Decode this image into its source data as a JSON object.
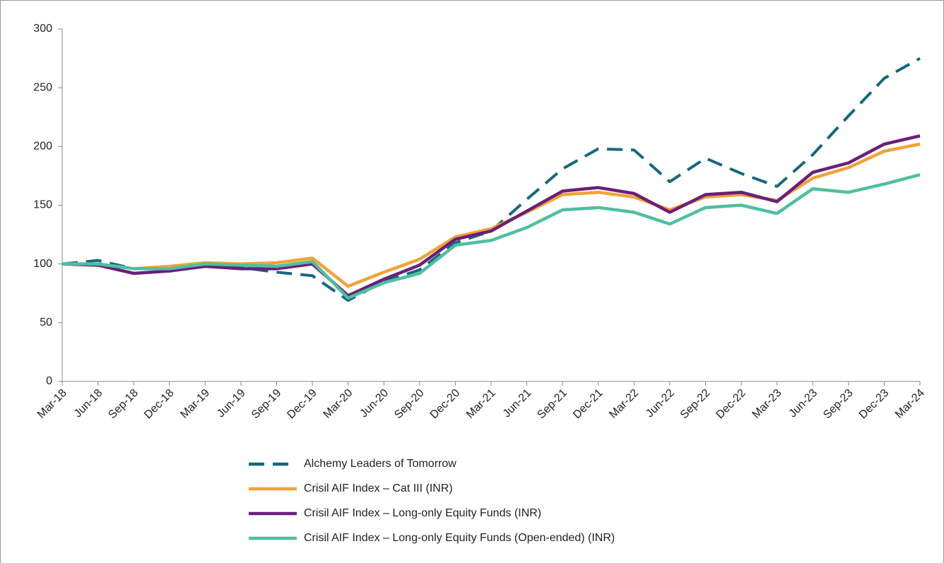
{
  "chart_data": {
    "type": "line",
    "categories": [
      "Mar-18",
      "Jun-18",
      "Sep-18",
      "Dec-18",
      "Mar-19",
      "Jun-19",
      "Sep-19",
      "Dec-19",
      "Mar-20",
      "Jun-20",
      "Sep-20",
      "Dec-20",
      "Mar-21",
      "Jun-21",
      "Sep-21",
      "Dec-21",
      "Mar-22",
      "Jun-22",
      "Sep-22",
      "Dec-22",
      "Mar-23",
      "Jun-23",
      "Sep-23",
      "Dec-23",
      "Mar-24"
    ],
    "series": [
      {
        "name": "Alchemy Leaders of Tomorrow",
        "color": "#17677c",
        "dashed": true,
        "values": [
          100,
          103,
          96,
          96,
          100,
          97,
          93,
          90,
          69,
          85,
          95,
          118,
          128,
          155,
          181,
          198,
          197,
          170,
          190,
          177,
          166,
          193,
          226,
          258,
          275
        ]
      },
      {
        "name": "Crisil AIF Index – Cat III (INR)",
        "color": "#f0a33a",
        "values": [
          100,
          100,
          96,
          98,
          101,
          100,
          101,
          105,
          81,
          93,
          104,
          123,
          130,
          144,
          159,
          161,
          157,
          146,
          157,
          159,
          154,
          173,
          182,
          196,
          202
        ]
      },
      {
        "name": "Crisil AIF Index – Long-only Equity Funds (INR)",
        "color": "#6a1f7a",
        "values": [
          100,
          99,
          92,
          94,
          98,
          96,
          96,
          100,
          73,
          87,
          99,
          121,
          128,
          145,
          162,
          165,
          160,
          144,
          159,
          161,
          153,
          178,
          186,
          202,
          209
        ]
      },
      {
        "name": "Crisil AIF Index – Long-only Equity Funds (Open-ended) (INR)",
        "color": "#4fbfa0",
        "values": [
          100,
          100,
          96,
          96,
          100,
          99,
          98,
          102,
          71,
          84,
          92,
          116,
          120,
          131,
          146,
          148,
          144,
          134,
          148,
          150,
          143,
          164,
          161,
          168,
          176
        ]
      }
    ],
    "ylim": [
      0,
      300
    ],
    "yticks": [
      0,
      50,
      100,
      150,
      200,
      250,
      300
    ],
    "legend": "bottom"
  }
}
